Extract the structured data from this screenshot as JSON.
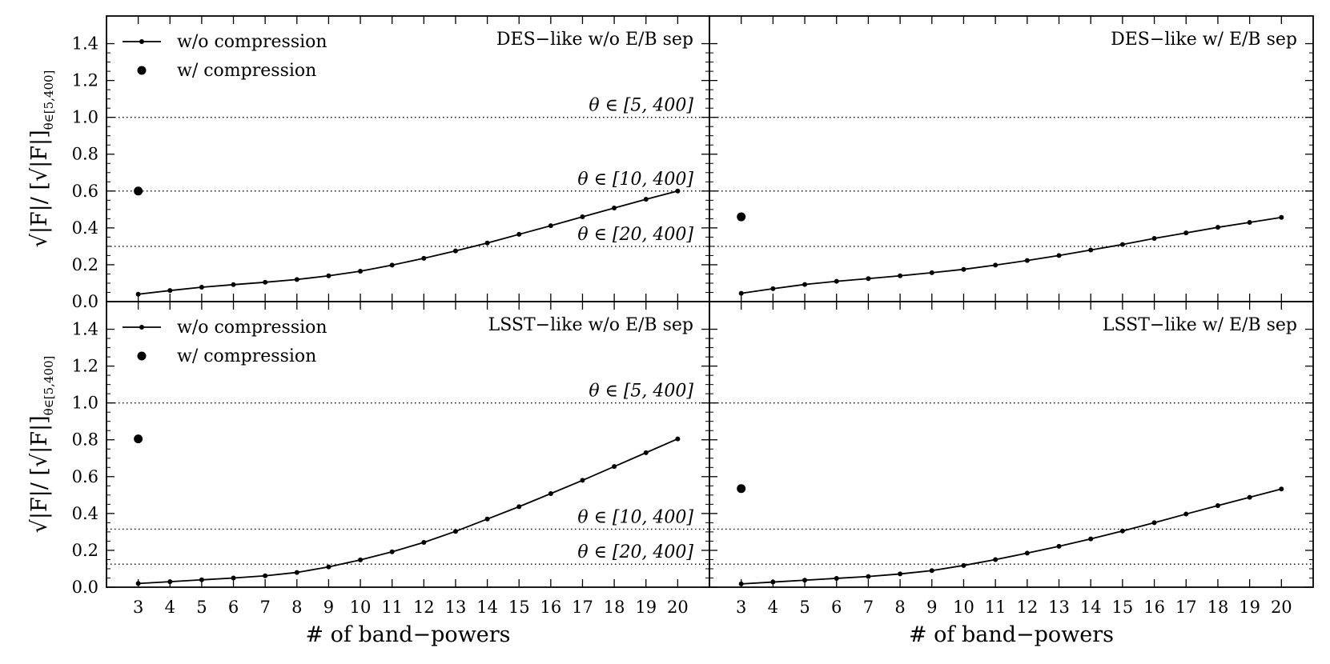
{
  "chart_data": {
    "type": "line",
    "shared": {
      "x_ticks": [
        "3",
        "4",
        "5",
        "6",
        "7",
        "8",
        "9",
        "10",
        "11",
        "12",
        "13",
        "14",
        "15",
        "16",
        "17",
        "18",
        "19",
        "20"
      ],
      "y_ticks": [
        "0.0",
        "0.2",
        "0.4",
        "0.6",
        "0.8",
        "1.0",
        "1.2",
        "1.4"
      ],
      "xlim": [
        2,
        21
      ],
      "ylim": [
        0,
        1.55
      ],
      "xlabel": "# of band−powers",
      "ylabel_main": "√|F|/ [√|F|]",
      "ylabel_sub": "θ∈[5,400]",
      "legend": {
        "line_label": "w/o compression",
        "dot_label": "w/ compression",
        "placement": "top-left"
      },
      "colors": {
        "line": "#000000",
        "ref": "#000000"
      }
    },
    "panels": [
      {
        "id": "des-no-eb",
        "title": "DES−like w/o E/B sep",
        "show_legend": true,
        "show_xlabel": false,
        "show_ylabel": true,
        "series": [
          {
            "name": "w/o compression",
            "x": [
              3,
              4,
              5,
              6,
              7,
              8,
              9,
              10,
              11,
              12,
              13,
              14,
              15,
              16,
              17,
              18,
              19,
              20
            ],
            "y": [
              0.04,
              0.06,
              0.078,
              0.092,
              0.105,
              0.12,
              0.14,
              0.165,
              0.198,
              0.235,
              0.275,
              0.318,
              0.365,
              0.412,
              0.46,
              0.508,
              0.555,
              0.6
            ]
          },
          {
            "name": "w/ compression",
            "x": [
              3
            ],
            "y": [
              0.6
            ]
          }
        ],
        "ref_lines": [
          {
            "y": 1.0,
            "label": "θ ∈ [5, 400]"
          },
          {
            "y": 0.6,
            "label": "θ ∈ [10, 400]"
          },
          {
            "y": 0.3,
            "label": "θ ∈ [20, 400]"
          }
        ]
      },
      {
        "id": "des-eb",
        "title": "DES−like w/ E/B sep",
        "show_legend": false,
        "show_xlabel": false,
        "show_ylabel": false,
        "series": [
          {
            "name": "w/o compression",
            "x": [
              3,
              4,
              5,
              6,
              7,
              8,
              9,
              10,
              11,
              12,
              13,
              14,
              15,
              16,
              17,
              18,
              19,
              20
            ],
            "y": [
              0.045,
              0.07,
              0.093,
              0.11,
              0.125,
              0.14,
              0.157,
              0.175,
              0.198,
              0.223,
              0.25,
              0.28,
              0.31,
              0.343,
              0.373,
              0.403,
              0.43,
              0.457
            ]
          },
          {
            "name": "w/ compression",
            "x": [
              3
            ],
            "y": [
              0.46
            ]
          }
        ],
        "ref_lines": [
          {
            "y": 1.0,
            "label": ""
          },
          {
            "y": 0.6,
            "label": ""
          },
          {
            "y": 0.3,
            "label": ""
          }
        ]
      },
      {
        "id": "lsst-no-eb",
        "title": "LSST−like w/o E/B sep",
        "show_legend": true,
        "show_xlabel": true,
        "show_ylabel": true,
        "series": [
          {
            "name": "w/o compression",
            "x": [
              3,
              4,
              5,
              6,
              7,
              8,
              9,
              10,
              11,
              12,
              13,
              14,
              15,
              16,
              17,
              18,
              19,
              20
            ],
            "y": [
              0.02,
              0.03,
              0.04,
              0.05,
              0.062,
              0.08,
              0.11,
              0.148,
              0.192,
              0.243,
              0.303,
              0.37,
              0.437,
              0.508,
              0.58,
              0.655,
              0.73,
              0.805
            ]
          },
          {
            "name": "w/ compression",
            "x": [
              3
            ],
            "y": [
              0.805
            ]
          }
        ],
        "ref_lines": [
          {
            "y": 1.0,
            "label": "θ ∈ [5, 400]"
          },
          {
            "y": 0.315,
            "label": "θ ∈ [10, 400]"
          },
          {
            "y": 0.125,
            "label": "θ ∈ [20, 400]"
          }
        ]
      },
      {
        "id": "lsst-eb",
        "title": "LSST−like w/ E/B sep",
        "show_legend": false,
        "show_xlabel": true,
        "show_ylabel": false,
        "series": [
          {
            "name": "w/o compression",
            "x": [
              3,
              4,
              5,
              6,
              7,
              8,
              9,
              10,
              11,
              12,
              13,
              14,
              15,
              16,
              17,
              18,
              19,
              20
            ],
            "y": [
              0.018,
              0.028,
              0.038,
              0.048,
              0.058,
              0.072,
              0.09,
              0.118,
              0.15,
              0.185,
              0.222,
              0.262,
              0.305,
              0.35,
              0.397,
              0.443,
              0.488,
              0.533
            ]
          },
          {
            "name": "w/ compression",
            "x": [
              3
            ],
            "y": [
              0.535
            ]
          }
        ],
        "ref_lines": [
          {
            "y": 1.0,
            "label": ""
          },
          {
            "y": 0.315,
            "label": ""
          },
          {
            "y": 0.125,
            "label": ""
          }
        ]
      }
    ]
  }
}
